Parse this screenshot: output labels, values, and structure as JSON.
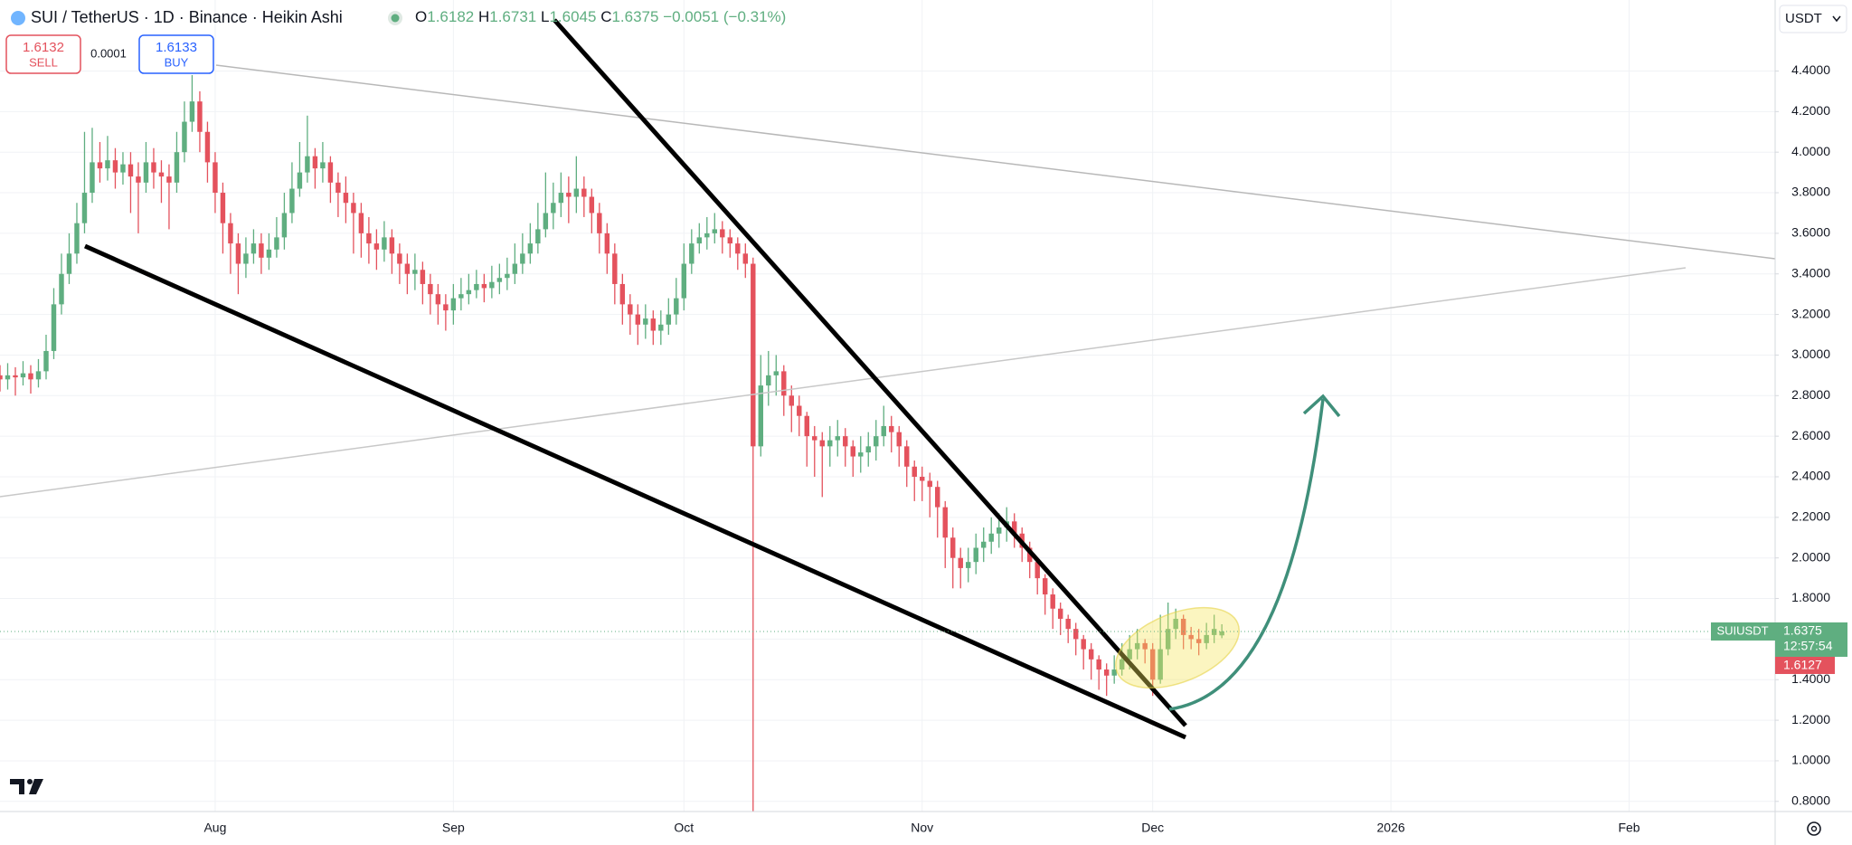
{
  "header": {
    "symbol": "SUI / TetherUS · 1D · Binance · Heikin Ashi",
    "ohlc_labels": [
      "O",
      "H",
      "L",
      "C"
    ],
    "change": "−0.0051 (−0.31%)"
  },
  "trade": {
    "sell_price": 1.6132,
    "sell_label": "SELL",
    "spread": 0.0001,
    "buy_price": 1.6133,
    "buy_label": "BUY"
  },
  "price_axis": {
    "currency": "USDT",
    "symbol_tag": "SUIUSDT",
    "countdown": "12:57:54",
    "bid_price": 1.6127
  },
  "chart_data": {
    "type": "candlestick",
    "up_color": "#5fae80",
    "down_color": "#e4525d",
    "grid": true,
    "ylim": [
      0.75,
      4.75
    ],
    "yticks": [
      {
        "value": 0.8,
        "label": "0.8000"
      },
      {
        "value": 1.0,
        "label": "1.0000"
      },
      {
        "value": 1.2,
        "label": "1.2000"
      },
      {
        "value": 1.4,
        "label": "1.4000"
      },
      {
        "value": 1.6,
        "label": "1.6000"
      },
      {
        "value": 1.8,
        "label": "1.8000"
      },
      {
        "value": 2.0,
        "label": "2.0000"
      },
      {
        "value": 2.2,
        "label": "2.2000"
      },
      {
        "value": 2.4,
        "label": "2.4000"
      },
      {
        "value": 2.6,
        "label": "2.6000"
      },
      {
        "value": 2.8,
        "label": "2.8000"
      },
      {
        "value": 3.0,
        "label": "3.0000"
      },
      {
        "value": 3.2,
        "label": "3.2000"
      },
      {
        "value": 3.4,
        "label": "3.4000"
      },
      {
        "value": 3.6,
        "label": "3.6000"
      },
      {
        "value": 3.8,
        "label": "3.8000"
      },
      {
        "value": 4.0,
        "label": "4.0000"
      },
      {
        "value": 4.2,
        "label": "4.2000"
      },
      {
        "value": 4.4,
        "label": "4.4000"
      }
    ],
    "categories": [
      null,
      null,
      null,
      null,
      null,
      null,
      null,
      null,
      null,
      null,
      null,
      null,
      null,
      null,
      null,
      null,
      null,
      null,
      null,
      null,
      null,
      null,
      null,
      null,
      null,
      null,
      null,
      null,
      "Aug",
      null,
      null,
      null,
      null,
      null,
      null,
      null,
      null,
      null,
      null,
      null,
      null,
      null,
      null,
      null,
      null,
      null,
      null,
      null,
      null,
      null,
      null,
      null,
      null,
      null,
      null,
      null,
      null,
      null,
      null,
      "Sep",
      null,
      null,
      null,
      null,
      null,
      null,
      null,
      null,
      null,
      null,
      null,
      null,
      null,
      null,
      null,
      null,
      null,
      null,
      null,
      null,
      null,
      null,
      null,
      null,
      null,
      null,
      null,
      null,
      null,
      "Oct",
      null,
      null,
      null,
      null,
      null,
      null,
      null,
      null,
      null,
      null,
      null,
      null,
      null,
      null,
      null,
      null,
      null,
      null,
      null,
      null,
      null,
      null,
      null,
      null,
      null,
      null,
      null,
      null,
      null,
      null,
      "Nov",
      null,
      null,
      null,
      null,
      null,
      null,
      null,
      null,
      null,
      null,
      null,
      null,
      null,
      null,
      null,
      null,
      null,
      null,
      null,
      null,
      null,
      null,
      null,
      null,
      null,
      null,
      null,
      null,
      null,
      "Dec",
      null,
      null,
      null,
      null,
      null,
      null,
      null,
      null,
      null,
      null,
      null,
      null,
      null,
      null,
      null,
      null,
      null,
      null,
      null,
      null,
      null,
      null,
      null,
      null,
      null,
      null,
      null,
      null,
      null,
      null,
      "2026",
      null,
      null,
      null,
      null,
      null,
      null,
      null,
      null,
      null,
      null,
      null,
      null,
      null,
      null,
      null,
      null,
      null,
      null,
      null,
      null,
      null,
      null,
      null,
      null,
      null,
      null,
      null,
      null,
      null,
      null,
      "Feb",
      null,
      null,
      null,
      null,
      null,
      null,
      null,
      null,
      null,
      null,
      null,
      null,
      null,
      null,
      null,
      null,
      null,
      null
    ],
    "open": [
      2.9,
      2.88,
      2.9,
      2.89,
      2.91,
      2.88,
      2.92,
      3.02,
      3.25,
      3.4,
      3.5,
      3.65,
      3.8,
      3.95,
      3.92,
      3.96,
      3.9,
      3.94,
      3.88,
      3.85,
      3.95,
      3.9,
      3.88,
      3.85,
      4.0,
      4.15,
      4.25,
      4.1,
      3.95,
      3.8,
      3.65,
      3.55,
      3.45,
      3.5,
      3.55,
      3.48,
      3.52,
      3.58,
      3.7,
      3.82,
      3.9,
      3.98,
      3.92,
      3.95,
      3.85,
      3.8,
      3.75,
      3.7,
      3.6,
      3.55,
      3.52,
      3.58,
      3.5,
      3.45,
      3.4,
      3.42,
      3.35,
      3.3,
      3.25,
      3.22,
      3.28,
      3.3,
      3.32,
      3.35,
      3.33,
      3.36,
      3.38,
      3.4,
      3.45,
      3.5,
      3.55,
      3.62,
      3.7,
      3.75,
      3.8,
      3.78,
      3.82,
      3.78,
      3.7,
      3.6,
      3.5,
      3.35,
      3.25,
      3.2,
      3.15,
      3.18,
      3.12,
      3.15,
      3.2,
      3.28,
      3.45,
      3.55,
      3.58,
      3.6,
      3.62,
      3.58,
      3.55,
      3.5,
      3.45,
      2.55,
      2.85,
      2.9,
      2.92,
      2.8,
      2.75,
      2.7,
      2.6,
      2.58,
      2.55,
      2.58,
      2.6,
      2.55,
      2.5,
      2.52,
      2.55,
      2.6,
      2.65,
      2.62,
      2.55,
      2.45,
      2.4,
      2.38,
      2.35,
      2.25,
      2.1,
      2.0,
      1.95,
      1.98,
      2.05,
      2.08,
      2.12,
      2.15,
      2.18,
      2.12,
      2.05,
      1.98,
      1.9,
      1.82,
      1.75,
      1.7,
      1.65,
      1.6,
      1.55,
      1.5,
      1.45,
      1.42,
      1.45,
      1.5,
      1.55,
      1.58,
      1.55,
      1.4,
      1.55,
      1.65,
      1.7,
      1.62,
      1.6,
      1.58,
      1.62,
      1.6182,
      null,
      null,
      null,
      null,
      null,
      null,
      null,
      null,
      null,
      null,
      null,
      null,
      null,
      null,
      null,
      null,
      null,
      null,
      null,
      null,
      null,
      null,
      null,
      null,
      null,
      null,
      null,
      null,
      null,
      null,
      null,
      null,
      null,
      null,
      null,
      null,
      null,
      null,
      null,
      null,
      null,
      null,
      null,
      null,
      null,
      null,
      null,
      null,
      null,
      null,
      null,
      null,
      null,
      null,
      null,
      null,
      null,
      null,
      null,
      null,
      null,
      null,
      null,
      null,
      null,
      null,
      null,
      null,
      null,
      null,
      null
    ],
    "high": [
      2.95,
      2.96,
      2.94,
      2.97,
      2.95,
      2.98,
      3.1,
      3.33,
      3.5,
      3.6,
      3.75,
      4.1,
      4.12,
      4.05,
      4.08,
      4.02,
      4.0,
      4.0,
      3.95,
      4.05,
      4.02,
      3.96,
      3.94,
      4.1,
      4.25,
      4.38,
      4.3,
      4.15,
      4.0,
      3.85,
      3.7,
      3.6,
      3.58,
      3.62,
      3.6,
      3.6,
      3.68,
      3.8,
      3.95,
      4.05,
      4.18,
      4.02,
      4.05,
      3.98,
      3.9,
      3.88,
      3.8,
      3.75,
      3.68,
      3.62,
      3.66,
      3.62,
      3.55,
      3.5,
      3.5,
      3.46,
      3.4,
      3.35,
      3.3,
      3.35,
      3.38,
      3.4,
      3.42,
      3.4,
      3.44,
      3.45,
      3.48,
      3.55,
      3.6,
      3.65,
      3.75,
      3.9,
      3.85,
      3.9,
      3.88,
      3.98,
      3.88,
      3.82,
      3.75,
      3.65,
      3.55,
      3.4,
      3.3,
      3.25,
      3.25,
      3.22,
      3.22,
      3.28,
      3.38,
      3.55,
      3.62,
      3.65,
      3.68,
      3.7,
      3.66,
      3.62,
      3.58,
      3.55,
      3.48,
      3.0,
      3.02,
      3.0,
      2.95,
      2.85,
      2.8,
      2.72,
      2.65,
      2.62,
      2.65,
      2.68,
      2.64,
      2.58,
      2.6,
      2.62,
      2.68,
      2.75,
      2.7,
      2.65,
      2.58,
      2.48,
      2.45,
      2.42,
      2.38,
      2.28,
      2.15,
      2.05,
      2.05,
      2.12,
      2.15,
      2.2,
      2.22,
      2.25,
      2.22,
      2.15,
      2.08,
      2.0,
      1.92,
      1.85,
      1.78,
      1.72,
      1.68,
      1.62,
      1.58,
      1.52,
      1.48,
      1.52,
      1.58,
      1.62,
      1.65,
      1.6,
      1.58,
      1.72,
      1.78,
      1.75,
      1.72,
      1.66,
      1.65,
      1.68,
      1.72,
      1.6731,
      null,
      null,
      null,
      null,
      null,
      null,
      null,
      null,
      null,
      null,
      null,
      null,
      null,
      null,
      null,
      null,
      null,
      null,
      null,
      null,
      null,
      null,
      null,
      null,
      null,
      null,
      null,
      null,
      null,
      null,
      null,
      null,
      null,
      null,
      null,
      null,
      null,
      null,
      null,
      null,
      null,
      null,
      null,
      null,
      null,
      null,
      null,
      null,
      null,
      null,
      null,
      null,
      null,
      null,
      null,
      null,
      null,
      null,
      null,
      null,
      null,
      null,
      null,
      null,
      null,
      null,
      null,
      null,
      null,
      null,
      null
    ],
    "low": [
      2.82,
      2.83,
      2.8,
      2.85,
      2.81,
      2.84,
      2.88,
      2.98,
      3.2,
      3.35,
      3.45,
      3.6,
      3.75,
      3.85,
      3.86,
      3.82,
      3.84,
      3.7,
      3.6,
      3.8,
      3.82,
      3.75,
      3.62,
      3.8,
      3.95,
      4.1,
      4.0,
      3.85,
      3.7,
      3.5,
      3.4,
      3.3,
      3.38,
      3.45,
      3.4,
      3.42,
      3.48,
      3.52,
      3.65,
      3.78,
      3.85,
      3.82,
      3.85,
      3.75,
      3.68,
      3.65,
      3.5,
      3.48,
      3.45,
      3.42,
      3.46,
      3.4,
      3.35,
      3.3,
      3.32,
      3.25,
      3.2,
      3.15,
      3.12,
      3.15,
      3.22,
      3.25,
      3.28,
      3.26,
      3.28,
      3.3,
      3.32,
      3.35,
      3.4,
      3.45,
      3.5,
      3.58,
      3.62,
      3.68,
      3.65,
      3.7,
      3.68,
      3.6,
      3.5,
      3.4,
      3.25,
      3.15,
      3.1,
      3.05,
      3.08,
      3.05,
      3.05,
      3.1,
      3.15,
      3.22,
      3.4,
      3.5,
      3.52,
      3.55,
      3.5,
      3.48,
      3.42,
      3.38,
      0.55,
      2.5,
      2.75,
      2.8,
      2.7,
      2.62,
      2.6,
      2.45,
      2.4,
      2.3,
      2.45,
      2.5,
      2.45,
      2.4,
      2.42,
      2.45,
      2.48,
      2.55,
      2.52,
      2.45,
      2.35,
      2.28,
      2.28,
      2.2,
      2.1,
      1.95,
      1.85,
      1.85,
      1.88,
      1.92,
      1.98,
      2.02,
      2.05,
      2.08,
      2.05,
      1.98,
      1.9,
      1.82,
      1.72,
      1.65,
      1.62,
      1.58,
      1.52,
      1.45,
      1.4,
      1.35,
      1.32,
      1.38,
      1.42,
      1.45,
      1.5,
      1.48,
      1.32,
      1.38,
      1.52,
      1.6,
      1.55,
      1.55,
      1.52,
      1.55,
      1.58,
      1.6045,
      null,
      null,
      null,
      null,
      null,
      null,
      null,
      null,
      null,
      null,
      null,
      null,
      null,
      null,
      null,
      null,
      null,
      null,
      null,
      null,
      null,
      null,
      null,
      null,
      null,
      null,
      null,
      null,
      null,
      null,
      null,
      null,
      null,
      null,
      null,
      null,
      null,
      null,
      null,
      null,
      null,
      null,
      null,
      null,
      null,
      null,
      null,
      null,
      null,
      null,
      null,
      null,
      null,
      null,
      null,
      null,
      null,
      null,
      null,
      null,
      null,
      null,
      null,
      null,
      null,
      null,
      null,
      null,
      null,
      null,
      null
    ],
    "close": [
      2.88,
      2.9,
      2.89,
      2.91,
      2.88,
      2.92,
      3.02,
      3.25,
      3.4,
      3.5,
      3.65,
      3.8,
      3.95,
      3.92,
      3.96,
      3.9,
      3.94,
      3.88,
      3.85,
      3.95,
      3.9,
      3.88,
      3.85,
      4.0,
      4.15,
      4.25,
      4.1,
      3.95,
      3.8,
      3.65,
      3.55,
      3.45,
      3.5,
      3.55,
      3.48,
      3.52,
      3.58,
      3.7,
      3.82,
      3.9,
      3.98,
      3.92,
      3.95,
      3.85,
      3.8,
      3.75,
      3.7,
      3.6,
      3.55,
      3.52,
      3.58,
      3.5,
      3.45,
      3.4,
      3.42,
      3.35,
      3.3,
      3.25,
      3.22,
      3.28,
      3.3,
      3.32,
      3.35,
      3.33,
      3.36,
      3.38,
      3.4,
      3.45,
      3.5,
      3.55,
      3.62,
      3.7,
      3.75,
      3.8,
      3.78,
      3.82,
      3.78,
      3.7,
      3.6,
      3.5,
      3.35,
      3.25,
      3.2,
      3.15,
      3.18,
      3.12,
      3.15,
      3.2,
      3.28,
      3.45,
      3.55,
      3.58,
      3.6,
      3.62,
      3.58,
      3.55,
      3.5,
      3.45,
      2.55,
      2.85,
      2.9,
      2.92,
      2.8,
      2.75,
      2.7,
      2.6,
      2.58,
      2.55,
      2.58,
      2.6,
      2.55,
      2.5,
      2.52,
      2.55,
      2.6,
      2.65,
      2.62,
      2.55,
      2.45,
      2.4,
      2.38,
      2.35,
      2.25,
      2.1,
      2.0,
      1.95,
      1.98,
      2.05,
      2.08,
      2.12,
      2.15,
      2.18,
      2.12,
      2.05,
      1.98,
      1.9,
      1.82,
      1.75,
      1.7,
      1.65,
      1.6,
      1.55,
      1.5,
      1.45,
      1.42,
      1.45,
      1.5,
      1.55,
      1.58,
      1.55,
      1.4,
      1.55,
      1.65,
      1.7,
      1.62,
      1.6,
      1.58,
      1.62,
      1.65,
      1.6375,
      null,
      null,
      null,
      null,
      null,
      null,
      null,
      null,
      null,
      null,
      null,
      null,
      null,
      null,
      null,
      null,
      null,
      null,
      null,
      null,
      null,
      null,
      null,
      null,
      null,
      null,
      null,
      null,
      null,
      null,
      null,
      null,
      null,
      null,
      null,
      null,
      null,
      null,
      null,
      null,
      null,
      null,
      null,
      null,
      null,
      null,
      null,
      null,
      null,
      null,
      null,
      null,
      null,
      null,
      null,
      null,
      null,
      null,
      null,
      null,
      null,
      null,
      null,
      null,
      null,
      null,
      null,
      null,
      null,
      null,
      null
    ]
  }
}
